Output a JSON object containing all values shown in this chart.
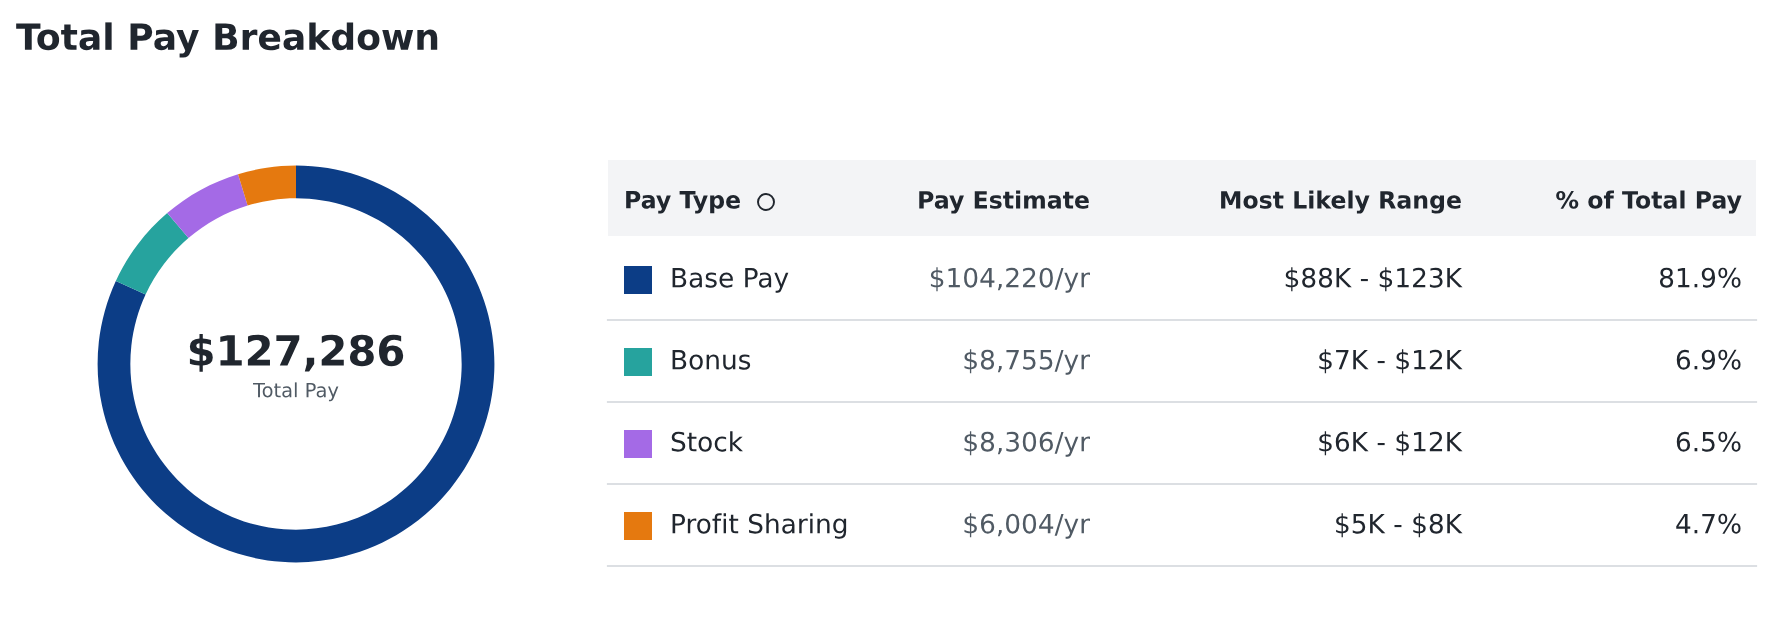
{
  "chart_data": {
    "type": "donut",
    "title": "Total Pay Breakdown",
    "categories": [
      "Base Pay",
      "Bonus",
      "Stock",
      "Profit Sharing"
    ],
    "values": [
      104220,
      8755,
      8306,
      6004
    ],
    "colors": [
      "#0c3d86",
      "#26a39e",
      "#a46ae6",
      "#e5790f"
    ],
    "legend": "right",
    "value_labels": [
      "$104,220/yr",
      "$8,755/yr",
      "$8,306/yr",
      "$6,004/yr"
    ],
    "annotations": [
      "$127,286",
      "Total Pay",
      "Pay Type",
      "Pay Estimate",
      "Most Likely Range",
      "% of Total Pay",
      "$88K - $123K",
      "81.9%",
      "$7K - $12K",
      "6.9%",
      "$6K - $12K",
      "6.5%",
      "$5K - $8K",
      "4.7%"
    ]
  }
}
